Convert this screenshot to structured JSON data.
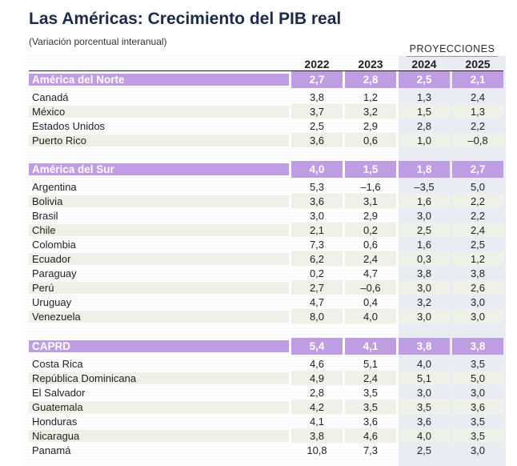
{
  "title": "Las Américas: Crecimiento del PIB real",
  "subtitle": "(Variación porcentual interanual)",
  "projections_label": "PROYECCIONES",
  "years": [
    "2022",
    "2023",
    "2024",
    "2025"
  ],
  "regions": [
    {
      "name": "América del Norte",
      "values": [
        "2,7",
        "2,8",
        "2,5",
        "2,1"
      ],
      "countries": [
        {
          "name": "Canadá",
          "values": [
            "3,8",
            "1,2",
            "1,3",
            "2,4"
          ]
        },
        {
          "name": "México",
          "values": [
            "3,7",
            "3,2",
            "1,5",
            "1,3"
          ]
        },
        {
          "name": "Estados Unidos",
          "values": [
            "2,5",
            "2,9",
            "2,8",
            "2,2"
          ]
        },
        {
          "name": "Puerto Rico",
          "values": [
            "3,6",
            "0,6",
            "1,0",
            "–0,8"
          ]
        }
      ]
    },
    {
      "name": "América del Sur",
      "values": [
        "4,0",
        "1,5",
        "1,8",
        "2,7"
      ],
      "countries": [
        {
          "name": "Argentina",
          "values": [
            "5,3",
            "–1,6",
            "–3,5",
            "5,0"
          ]
        },
        {
          "name": "Bolivia",
          "values": [
            "3,6",
            "3,1",
            "1,6",
            "2,2"
          ]
        },
        {
          "name": "Brasil",
          "values": [
            "3,0",
            "2,9",
            "3,0",
            "2,2"
          ]
        },
        {
          "name": "Chile",
          "values": [
            "2,1",
            "0,2",
            "2,5",
            "2,4"
          ]
        },
        {
          "name": "Colombia",
          "values": [
            "7,3",
            "0,6",
            "1,6",
            "2,5"
          ]
        },
        {
          "name": "Ecuador",
          "values": [
            "6,2",
            "2,4",
            "0,3",
            "1,2"
          ]
        },
        {
          "name": "Paraguay",
          "values": [
            "0,2",
            "4,7",
            "3,8",
            "3,8"
          ]
        },
        {
          "name": "Perú",
          "values": [
            "2,7",
            "–0,6",
            "3,0",
            "2,6"
          ]
        },
        {
          "name": "Uruguay",
          "values": [
            "4,7",
            "0,4",
            "3,2",
            "3,0"
          ]
        },
        {
          "name": "Venezuela",
          "values": [
            "8,0",
            "4,0",
            "3,0",
            "3,0"
          ]
        }
      ]
    },
    {
      "name": "CAPRD",
      "values": [
        "5,4",
        "4,1",
        "3,8",
        "3,8"
      ],
      "countries": [
        {
          "name": "Costa Rica",
          "values": [
            "4,6",
            "5,1",
            "4,0",
            "3,5"
          ]
        },
        {
          "name": "República Dominicana",
          "values": [
            "4,9",
            "2,4",
            "5,1",
            "5,0"
          ]
        },
        {
          "name": "El Salvador",
          "values": [
            "2,8",
            "3,5",
            "3,0",
            "3,0"
          ]
        },
        {
          "name": "Guatemala",
          "values": [
            "4,2",
            "3,5",
            "3,5",
            "3,6"
          ]
        },
        {
          "name": "Honduras",
          "values": [
            "4,1",
            "3,6",
            "3,6",
            "3,5"
          ]
        },
        {
          "name": "Nicaragua",
          "values": [
            "3,8",
            "4,6",
            "4,0",
            "3,5"
          ]
        },
        {
          "name": "Panamá",
          "values": [
            "10,8",
            "7,3",
            "2,5",
            "3,0"
          ]
        }
      ]
    }
  ]
}
